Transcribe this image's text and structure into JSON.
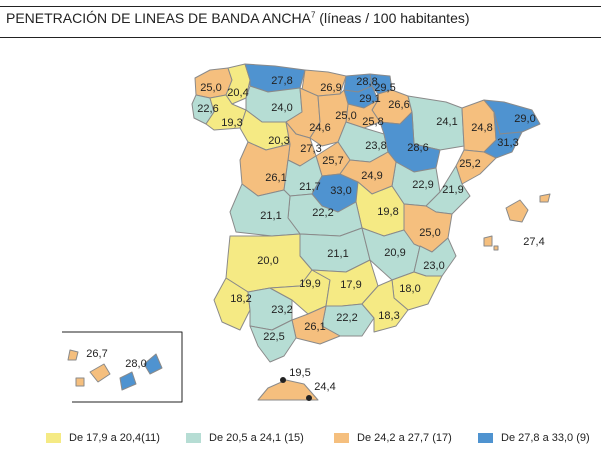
{
  "title": {
    "text": "PENETRACIÓN DE LINEAS DE BANDA ANCHA",
    "superscript": "7",
    "unit": " (líneas / 100 habitantes)"
  },
  "colors": {
    "low": "#f5ea84",
    "midlow": "#b6ddd4",
    "midhigh": "#f5bf7e",
    "high": "#4f93d0",
    "border": "#8a8a8a"
  },
  "legend": [
    {
      "label": "De 17,9 a 20,4(11)",
      "color": "#f5ea84"
    },
    {
      "label": "De 20,5 a 24,1 (15)",
      "color": "#b6ddd4"
    },
    {
      "label": "De 24,2 a 27,7 (17)",
      "color": "#f5bf7e"
    },
    {
      "label": "De 27,8 a 33,0 (9)",
      "color": "#4f93d0"
    }
  ],
  "values": [
    "27,8",
    "25,0",
    "20,4",
    "22,6",
    "19,3",
    "24,0",
    "20,3",
    "26,9",
    "28,8",
    "29,5",
    "29,1",
    "26,6",
    "25,0",
    "25,8",
    "24,6",
    "27,3",
    "24,1",
    "24,8",
    "29,0",
    "31,3",
    "23,8",
    "28,6",
    "25,7",
    "26,1",
    "21,7",
    "33,0",
    "24,9",
    "25,2",
    "22,9",
    "21,9",
    "21,1",
    "22,2",
    "19,8",
    "25,0",
    "27,4",
    "20,0",
    "21,1",
    "20,9",
    "23,0",
    "19,9",
    "17,9",
    "18,0",
    "18,2",
    "23,2",
    "26,1",
    "22,2",
    "18,3",
    "22,5",
    "26,7",
    "28,0",
    "19,5",
    "24,4"
  ]
}
